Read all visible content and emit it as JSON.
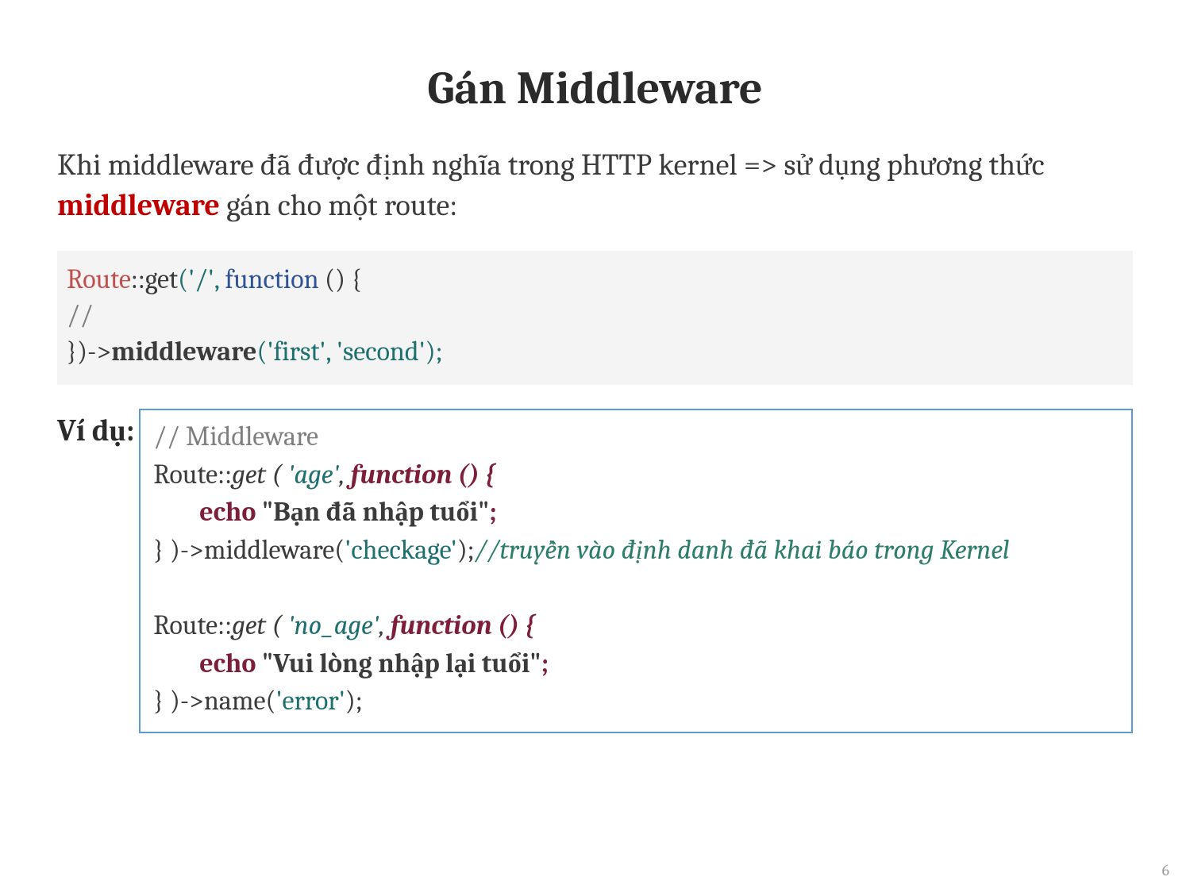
{
  "title": "Gán Middleware",
  "intro": {
    "part1": "Khi middleware đã được định nghĩa trong HTTP kernel => sử dụng phương thức ",
    "keyword": "middleware",
    "part2": " gán cho một route:"
  },
  "code1": {
    "route": "Route",
    "dcolon": "::",
    "get": "get",
    "lparen": "(",
    "slash": "'/'",
    "comma": ", ",
    "function": "function",
    "fn_rest": " () {",
    "comment": " //",
    "close_arrow": "})->",
    "middleware": "middleware",
    "lparen2": "(",
    "first": "'first'",
    "comma2": ", ",
    "second": "'second'",
    "rparen_semi": ");"
  },
  "example_label": "Ví dụ:",
  "code2": {
    "c_header": "// Middleware",
    "l1_route": "Route::",
    "l1_get": "get ( ",
    "l1_arg": "'age'",
    "l1_comma": ", ",
    "l1_fn": "function () {",
    "l2_echo": "echo ",
    "l2_str": "\"Bạn đã nhập tuổi\"",
    "l2_semi": ";",
    "l3_close": "} )->middleware(",
    "l3_arg": "'checkage'",
    "l3_rparen": ");",
    "l3_comment": "//truyền vào định danh đã khai báo trong Kernel",
    "l5_route": "Route::",
    "l5_get": "get ( ",
    "l5_arg": "'no_age'",
    "l5_comma": ", ",
    "l5_fn": "function () {",
    "l6_echo": "echo ",
    "l6_str": "\"Vui lòng nhập lại tuổi\"",
    "l6_semi": ";",
    "l7_close": "} )->name(",
    "l7_arg": "'error'",
    "l7_rparen": ");"
  },
  "page_number": "6",
  "colors": {
    "bg": "#ffffff",
    "text": "#3b3b3b",
    "title": "#2b2b2b",
    "red_bold": "#c00000",
    "codebox_bg": "#f4f4f4",
    "tok_red": "#c0504d",
    "tok_teal": "#1f6f6f",
    "tok_blue": "#2f5496",
    "tok_gray": "#7f7f7f",
    "tok_maroon": "#7d1e3a",
    "border_blue": "#5b9bd5",
    "comment_teal": "#2e7d6b",
    "pagenum": "#9e9e9e"
  },
  "fontsizes": {
    "title": 58,
    "body": 38,
    "code": 34,
    "pagenum": 20
  }
}
